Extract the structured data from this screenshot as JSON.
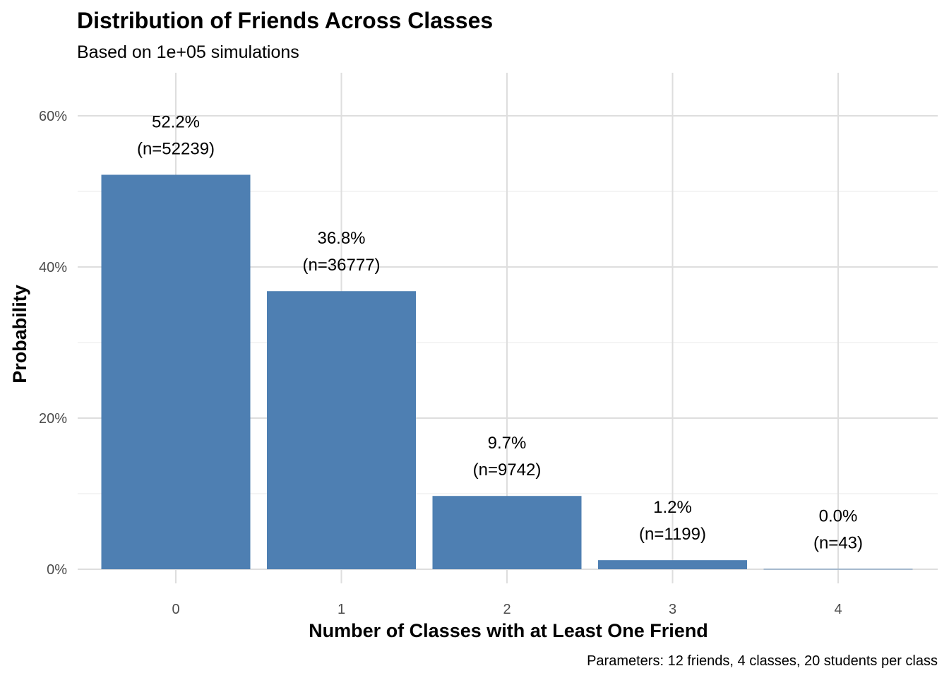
{
  "chart_data": {
    "type": "bar",
    "title": "Distribution of Friends Across Classes",
    "subtitle": "Based on 1e+05 simulations",
    "xlabel": "Number of Classes with at Least One Friend",
    "ylabel": "Probability",
    "caption": "Parameters: 12 friends, 4 classes, 20 students per class",
    "categories": [
      "0",
      "1",
      "2",
      "3",
      "4"
    ],
    "values": [
      0.522,
      0.368,
      0.097,
      0.012,
      0.0004
    ],
    "counts": [
      52239,
      36777,
      9742,
      1199,
      43
    ],
    "value_labels": [
      "52.2%",
      "36.8%",
      "9.7%",
      "1.2%",
      "0.0%"
    ],
    "count_labels": [
      "(n=52239)",
      "(n=36777)",
      "(n=9742)",
      "(n=1199)",
      "(n=43)"
    ],
    "ylim": [
      0,
      0.65
    ],
    "yticks": [
      0,
      0.2,
      0.4,
      0.6
    ],
    "ytick_labels": [
      "0%",
      "20%",
      "40%",
      "60%"
    ],
    "grid": true,
    "bar_color": "#4e7fb2"
  }
}
